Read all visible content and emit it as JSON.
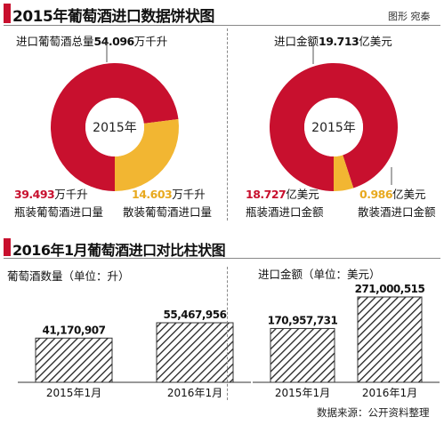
{
  "header": {
    "title": "2015年葡萄酒进口数据饼状图",
    "credit": "图形 宛秦"
  },
  "section2_title": "2016年1月葡萄酒进口对比柱状图",
  "source": "数据来源：公开资料整理",
  "colors": {
    "accent": "#c8102e",
    "secondary": "#f2b632",
    "bar_stroke": "#333333"
  },
  "chart_data": [
    {
      "type": "pie",
      "title_prefix": "进口葡萄酒总量",
      "title_value": "54.096",
      "title_unit": "万千升",
      "center_label": "2015年",
      "slices": [
        {
          "name": "瓶装葡萄酒进口量",
          "value": 39.493,
          "value_text": "39.493",
          "unit": "万千升",
          "color": "#c8102e"
        },
        {
          "name": "散装葡萄酒进口量",
          "value": 14.603,
          "value_text": "14.603",
          "unit": "万千升",
          "color": "#f2b632"
        }
      ]
    },
    {
      "type": "pie",
      "title_prefix": "进口金额",
      "title_value": "19.713",
      "title_unit": "亿美元",
      "center_label": "2015年",
      "slices": [
        {
          "name": "瓶装酒进口金额",
          "value": 18.727,
          "value_text": "18.727",
          "unit": "亿美元",
          "color": "#c8102e"
        },
        {
          "name": "散装酒进口金额",
          "value": 0.986,
          "value_text": "0.986",
          "unit": "亿美元",
          "color": "#f2b632"
        }
      ]
    },
    {
      "type": "bar",
      "title": "葡萄酒数量（单位：升）",
      "categories": [
        "2015年1月",
        "2016年1月"
      ],
      "values": [
        41170907,
        55467956
      ],
      "value_labels": [
        "41,170,907",
        "55,467,956"
      ]
    },
    {
      "type": "bar",
      "title": "进口金额（单位：美元）",
      "categories": [
        "2015年1月",
        "2016年1月"
      ],
      "values": [
        170957731,
        271000515
      ],
      "value_labels": [
        "170,957,731",
        "271,000,515"
      ]
    }
  ]
}
